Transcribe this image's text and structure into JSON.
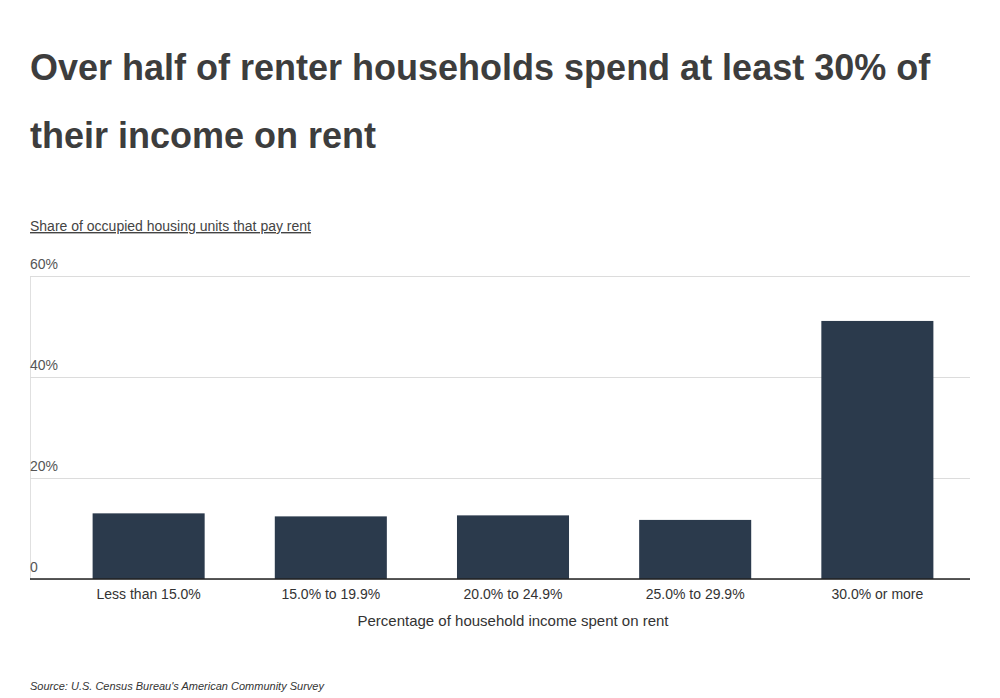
{
  "chart_data": {
    "type": "bar",
    "title": "Over half of renter households spend at least 30% of their income on rent",
    "subtitle": "Share of occupied housing units that pay rent",
    "x_label": "Percentage of household income spent on rent",
    "source": "Source: U.S. Census Bureau's American Community Survey",
    "categories": [
      "Less than 15.0%",
      "15.0% to 19.9%",
      "20.0% to 24.9%",
      "25.0% to 29.9%",
      "30.0% or more"
    ],
    "values": [
      13.0,
      12.4,
      12.6,
      11.7,
      51.1
    ],
    "color": "#2b3a4c",
    "ylim": [
      0,
      60
    ],
    "yticks": [
      0,
      {
        "value": 20,
        "label": "20%"
      },
      {
        "value": 40,
        "label": "40%"
      },
      {
        "value": 60,
        "label": "60%"
      }
    ],
    "grid": true
  }
}
